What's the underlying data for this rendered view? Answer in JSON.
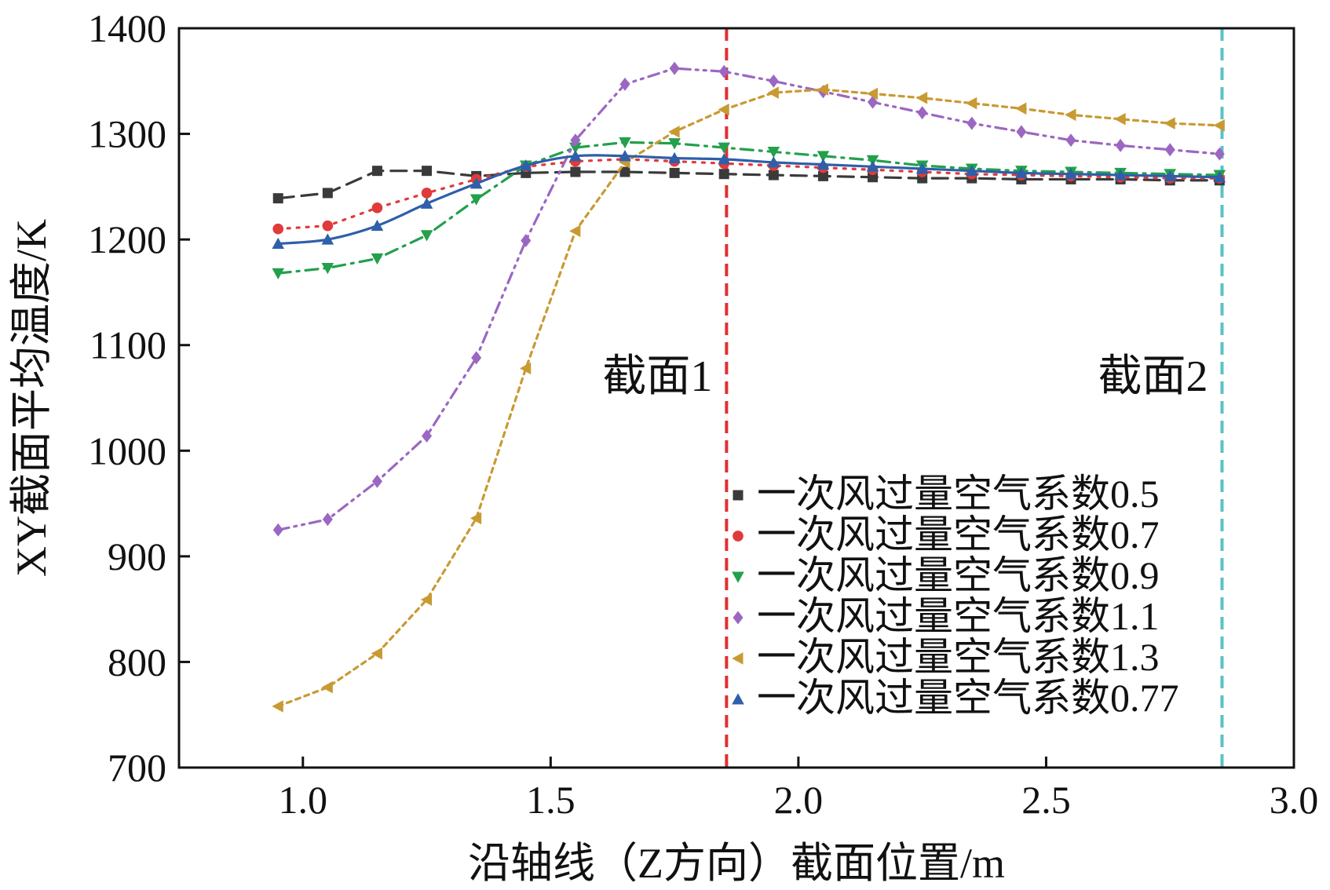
{
  "chart_data": {
    "type": "line",
    "xlabel": "沿轴线（Z方向）截面位置/m",
    "ylabel": "XY截面平均温度/K",
    "xlim": [
      0.75,
      3.0
    ],
    "ylim": [
      700,
      1400
    ],
    "x_ticks": [
      1.0,
      1.5,
      2.0,
      2.5,
      3.0
    ],
    "x_tick_labels": [
      "1.0",
      "1.5",
      "2.0",
      "2.5",
      "3.0"
    ],
    "y_ticks": [
      700,
      800,
      900,
      1000,
      1100,
      1200,
      1300,
      1400
    ],
    "y_tick_labels": [
      "700",
      "800",
      "900",
      "1000",
      "1100",
      "1200",
      "1300",
      "1400"
    ],
    "x": [
      0.95,
      1.05,
      1.15,
      1.25,
      1.35,
      1.45,
      1.55,
      1.65,
      1.75,
      1.85,
      1.95,
      2.05,
      2.15,
      2.25,
      2.35,
      2.45,
      2.55,
      2.65,
      2.75,
      2.85
    ],
    "series": [
      {
        "name": "一次风过量空气系数0.5",
        "color": "#3a3a3a",
        "marker": "square",
        "dash": "dashed",
        "values": [
          1239,
          1244,
          1265,
          1265,
          1260,
          1263,
          1264,
          1264,
          1263,
          1262,
          1261,
          1260,
          1259,
          1258,
          1258,
          1257,
          1257,
          1257,
          1256,
          1256
        ]
      },
      {
        "name": "一次风过量空气系数0.7",
        "color": "#e03a3a",
        "marker": "circle",
        "dash": "dotted",
        "values": [
          1210,
          1213,
          1230,
          1244,
          1257,
          1269,
          1274,
          1276,
          1274,
          1272,
          1270,
          1268,
          1266,
          1264,
          1262,
          1261,
          1260,
          1259,
          1258,
          1258
        ]
      },
      {
        "name": "一次风过量空气系数0.9",
        "color": "#22a04c",
        "marker": "triangle-down",
        "dash": "dashdot",
        "values": [
          1168,
          1173,
          1182,
          1204,
          1238,
          1270,
          1287,
          1292,
          1291,
          1287,
          1283,
          1279,
          1275,
          1270,
          1267,
          1265,
          1264,
          1263,
          1262,
          1261
        ]
      },
      {
        "name": "一次风过量空气系数1.1",
        "color": "#9b67c2",
        "marker": "diamond",
        "dash": "dashdotdot",
        "values": [
          925,
          935,
          971,
          1014,
          1088,
          1199,
          1294,
          1347,
          1362,
          1359,
          1350,
          1340,
          1330,
          1320,
          1310,
          1302,
          1294,
          1289,
          1285,
          1281
        ]
      },
      {
        "name": "一次风过量空气系数1.3",
        "color": "#c89a32",
        "marker": "triangle-left",
        "dash": "shortdash",
        "values": [
          758,
          776,
          808,
          859,
          936,
          1078,
          1208,
          1273,
          1302,
          1323,
          1339,
          1342,
          1338,
          1334,
          1329,
          1324,
          1318,
          1314,
          1310,
          1308
        ]
      },
      {
        "name": "一次风过量空气系数0.77",
        "color": "#2e5faa",
        "marker": "triangle-up",
        "dash": "solid",
        "values": [
          1196,
          1200,
          1213,
          1234,
          1253,
          1270,
          1279,
          1279,
          1277,
          1276,
          1273,
          1271,
          1269,
          1267,
          1265,
          1263,
          1262,
          1261,
          1260,
          1259
        ]
      }
    ],
    "reference_lines": [
      {
        "x": 1.855,
        "label": "截面1",
        "color": "#e03030"
      },
      {
        "x": 2.855,
        "label": "截面2",
        "color": "#5bc0c8"
      }
    ],
    "legend_position": "lower-right"
  }
}
